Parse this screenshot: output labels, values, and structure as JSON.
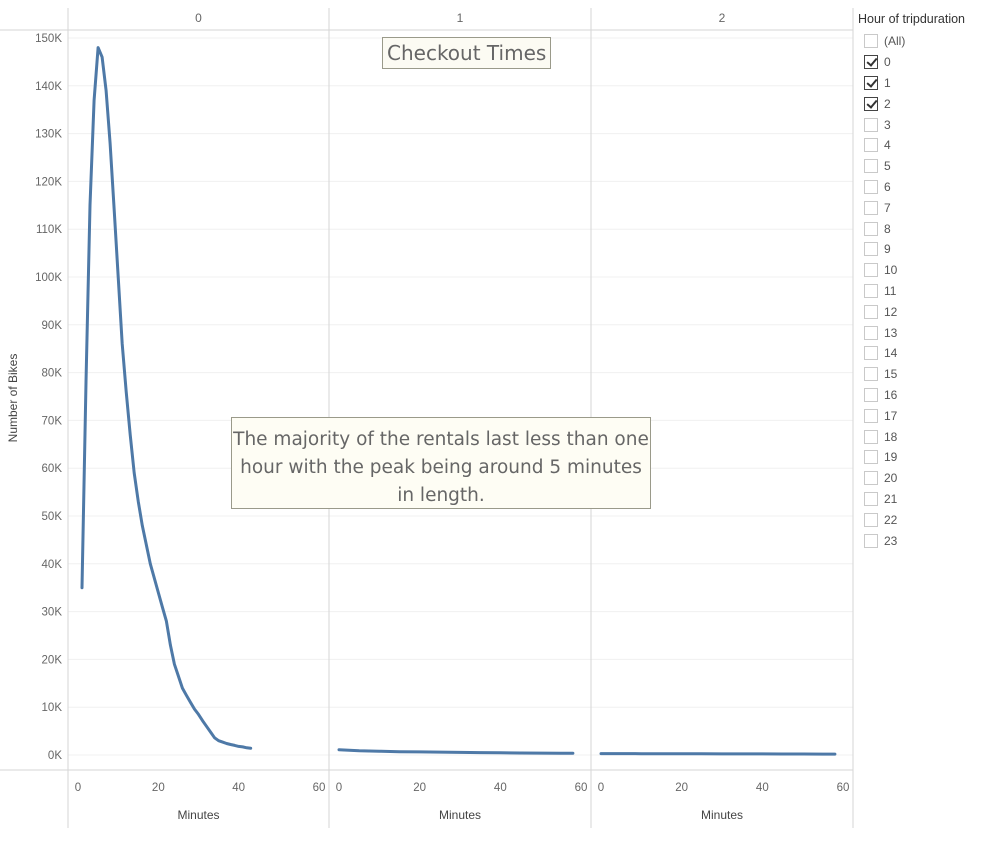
{
  "title": "Checkout Times",
  "annotation": "The majority of the rentals last less than one hour with the peak being around 5 minutes in length.",
  "legend": {
    "title": "Hour of tripduration",
    "items": [
      {
        "label": "(All)",
        "checked": false
      },
      {
        "label": "0",
        "checked": true
      },
      {
        "label": "1",
        "checked": true
      },
      {
        "label": "2",
        "checked": true
      },
      {
        "label": "3",
        "checked": false
      },
      {
        "label": "4",
        "checked": false
      },
      {
        "label": "5",
        "checked": false
      },
      {
        "label": "6",
        "checked": false
      },
      {
        "label": "7",
        "checked": false
      },
      {
        "label": "8",
        "checked": false
      },
      {
        "label": "9",
        "checked": false
      },
      {
        "label": "10",
        "checked": false
      },
      {
        "label": "11",
        "checked": false
      },
      {
        "label": "12",
        "checked": false
      },
      {
        "label": "13",
        "checked": false
      },
      {
        "label": "14",
        "checked": false
      },
      {
        "label": "15",
        "checked": false
      },
      {
        "label": "16",
        "checked": false
      },
      {
        "label": "17",
        "checked": false
      },
      {
        "label": "18",
        "checked": false
      },
      {
        "label": "19",
        "checked": false
      },
      {
        "label": "20",
        "checked": false
      },
      {
        "label": "21",
        "checked": false
      },
      {
        "label": "22",
        "checked": false
      },
      {
        "label": "23",
        "checked": false
      }
    ]
  },
  "chart_data": {
    "type": "line",
    "title": "Checkout Times",
    "ylabel": "Number of Bikes",
    "xlabel": "Minutes",
    "ylim": [
      0,
      150000
    ],
    "yticks": [
      0,
      10000,
      20000,
      30000,
      40000,
      50000,
      60000,
      70000,
      80000,
      90000,
      100000,
      110000,
      120000,
      130000,
      140000,
      150000
    ],
    "ytick_labels": [
      "0K",
      "10K",
      "20K",
      "30K",
      "40K",
      "50K",
      "60K",
      "70K",
      "80K",
      "90K",
      "100K",
      "110K",
      "120K",
      "130K",
      "140K",
      "150K"
    ],
    "xlim": [
      0,
      60
    ],
    "xticks": [
      0,
      20,
      40,
      60
    ],
    "xtick_labels": [
      "0",
      "20",
      "40",
      "60"
    ],
    "panes": [
      {
        "name": "0",
        "points": [
          [
            1,
            35000
          ],
          [
            2,
            78000
          ],
          [
            3,
            115000
          ],
          [
            4,
            137000
          ],
          [
            5,
            148000
          ],
          [
            6,
            146000
          ],
          [
            7,
            139000
          ],
          [
            8,
            128000
          ],
          [
            9,
            114000
          ],
          [
            10,
            100000
          ],
          [
            11,
            86000
          ],
          [
            12,
            76000
          ],
          [
            13,
            67000
          ],
          [
            14,
            59000
          ],
          [
            15,
            53000
          ],
          [
            16,
            48000
          ],
          [
            17,
            44000
          ],
          [
            18,
            40000
          ],
          [
            19,
            37000
          ],
          [
            20,
            34000
          ],
          [
            21,
            31000
          ],
          [
            22,
            28000
          ],
          [
            23,
            23000
          ],
          [
            24,
            19000
          ],
          [
            25,
            16500
          ],
          [
            26,
            14000
          ],
          [
            27,
            12500
          ],
          [
            28,
            11000
          ],
          [
            29,
            9600
          ],
          [
            30,
            8500
          ],
          [
            31,
            7200
          ],
          [
            32,
            6000
          ],
          [
            33,
            4800
          ],
          [
            34,
            3600
          ],
          [
            35,
            3000
          ],
          [
            36,
            2700
          ],
          [
            37,
            2400
          ],
          [
            38,
            2200
          ],
          [
            39,
            2000
          ],
          [
            40,
            1800
          ],
          [
            41,
            1700
          ],
          [
            42,
            1500
          ],
          [
            43,
            1400
          ]
        ]
      },
      {
        "name": "1",
        "points": [
          [
            0,
            1100
          ],
          [
            5,
            900
          ],
          [
            10,
            800
          ],
          [
            15,
            700
          ],
          [
            20,
            650
          ],
          [
            25,
            600
          ],
          [
            30,
            550
          ],
          [
            35,
            500
          ],
          [
            40,
            450
          ],
          [
            45,
            420
          ],
          [
            50,
            400
          ],
          [
            55,
            380
          ],
          [
            58,
            360
          ]
        ]
      },
      {
        "name": "2",
        "points": [
          [
            0,
            300
          ],
          [
            5,
            290
          ],
          [
            10,
            280
          ],
          [
            15,
            270
          ],
          [
            20,
            260
          ],
          [
            25,
            250
          ],
          [
            30,
            240
          ],
          [
            35,
            230
          ],
          [
            40,
            220
          ],
          [
            45,
            210
          ],
          [
            50,
            200
          ],
          [
            55,
            195
          ],
          [
            58,
            190
          ]
        ]
      }
    ],
    "legend_placement": "right",
    "grid": true
  }
}
